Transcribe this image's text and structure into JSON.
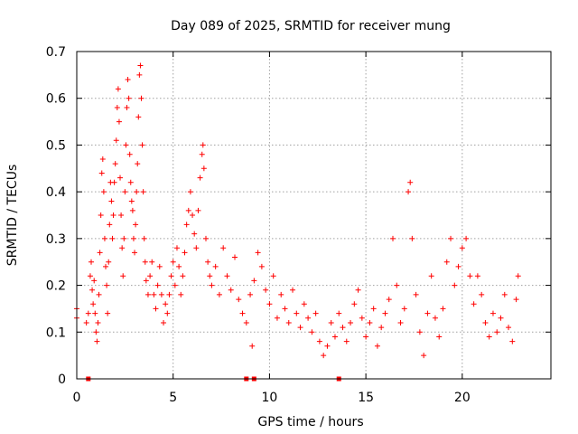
{
  "chart_data": {
    "type": "scatter",
    "title": "Day 089 of 2025, SRMTID for receiver mung",
    "xlabel": "GPS time / hours",
    "ylabel": "SRMTID / TECUs",
    "xlim": [
      0,
      24.6
    ],
    "ylim": [
      0,
      0.7
    ],
    "xticks": [
      0,
      5,
      10,
      15,
      20
    ],
    "yticks": [
      0,
      0.1,
      0.2,
      0.3,
      0.4,
      0.5,
      0.6,
      0.7
    ],
    "xtick_labels": [
      "0",
      "5",
      "10",
      "15",
      "20"
    ],
    "ytick_labels": [
      "0",
      "0.1",
      "0.2",
      "0.3",
      "0.4",
      "0.5",
      "0.6",
      "0.7"
    ],
    "grid": true,
    "marker": "plus",
    "marker_color": "#ff0000",
    "series": [
      {
        "name": "SRMTID",
        "color": "#ff0000",
        "points": [
          [
            0.0,
            0.13
          ],
          [
            0.0,
            0.15
          ],
          [
            0.5,
            0.12
          ],
          [
            0.6,
            0.14
          ],
          [
            0.7,
            0.22
          ],
          [
            0.75,
            0.25
          ],
          [
            0.8,
            0.19
          ],
          [
            0.85,
            0.16
          ],
          [
            0.9,
            0.21
          ],
          [
            0.95,
            0.14
          ],
          [
            1.0,
            0.1
          ],
          [
            1.05,
            0.08
          ],
          [
            1.1,
            0.12
          ],
          [
            1.15,
            0.18
          ],
          [
            1.2,
            0.27
          ],
          [
            1.25,
            0.35
          ],
          [
            1.3,
            0.44
          ],
          [
            1.35,
            0.47
          ],
          [
            1.4,
            0.4
          ],
          [
            1.45,
            0.3
          ],
          [
            1.5,
            0.24
          ],
          [
            1.55,
            0.2
          ],
          [
            1.6,
            0.14
          ],
          [
            1.65,
            0.25
          ],
          [
            1.7,
            0.33
          ],
          [
            1.75,
            0.42
          ],
          [
            1.8,
            0.38
          ],
          [
            1.85,
            0.3
          ],
          [
            1.9,
            0.35
          ],
          [
            1.95,
            0.42
          ],
          [
            2.0,
            0.46
          ],
          [
            2.05,
            0.51
          ],
          [
            2.1,
            0.58
          ],
          [
            2.15,
            0.62
          ],
          [
            2.2,
            0.55
          ],
          [
            2.25,
            0.43
          ],
          [
            2.3,
            0.35
          ],
          [
            2.35,
            0.28
          ],
          [
            2.4,
            0.22
          ],
          [
            2.45,
            0.3
          ],
          [
            2.5,
            0.4
          ],
          [
            2.55,
            0.5
          ],
          [
            2.6,
            0.58
          ],
          [
            2.65,
            0.64
          ],
          [
            2.7,
            0.6
          ],
          [
            2.75,
            0.48
          ],
          [
            2.8,
            0.42
          ],
          [
            2.85,
            0.38
          ],
          [
            2.9,
            0.36
          ],
          [
            2.95,
            0.3
          ],
          [
            3.0,
            0.27
          ],
          [
            3.05,
            0.33
          ],
          [
            3.1,
            0.4
          ],
          [
            3.15,
            0.46
          ],
          [
            3.2,
            0.56
          ],
          [
            3.25,
            0.65
          ],
          [
            3.3,
            0.67
          ],
          [
            3.35,
            0.6
          ],
          [
            3.4,
            0.5
          ],
          [
            3.45,
            0.4
          ],
          [
            3.5,
            0.3
          ],
          [
            3.55,
            0.25
          ],
          [
            3.6,
            0.21
          ],
          [
            3.7,
            0.18
          ],
          [
            3.8,
            0.22
          ],
          [
            3.9,
            0.25
          ],
          [
            4.0,
            0.18
          ],
          [
            4.1,
            0.15
          ],
          [
            4.2,
            0.2
          ],
          [
            4.3,
            0.24
          ],
          [
            4.4,
            0.18
          ],
          [
            4.5,
            0.12
          ],
          [
            4.6,
            0.16
          ],
          [
            4.7,
            0.14
          ],
          [
            4.8,
            0.18
          ],
          [
            4.9,
            0.22
          ],
          [
            5.0,
            0.25
          ],
          [
            5.1,
            0.2
          ],
          [
            5.2,
            0.28
          ],
          [
            5.3,
            0.24
          ],
          [
            5.4,
            0.18
          ],
          [
            5.5,
            0.22
          ],
          [
            5.6,
            0.27
          ],
          [
            5.7,
            0.33
          ],
          [
            5.8,
            0.36
          ],
          [
            5.9,
            0.4
          ],
          [
            6.0,
            0.35
          ],
          [
            6.1,
            0.31
          ],
          [
            6.2,
            0.28
          ],
          [
            6.3,
            0.36
          ],
          [
            6.4,
            0.43
          ],
          [
            6.5,
            0.48
          ],
          [
            6.55,
            0.5
          ],
          [
            6.6,
            0.45
          ],
          [
            6.7,
            0.3
          ],
          [
            6.8,
            0.25
          ],
          [
            6.9,
            0.22
          ],
          [
            7.0,
            0.2
          ],
          [
            7.2,
            0.24
          ],
          [
            7.4,
            0.18
          ],
          [
            7.6,
            0.28
          ],
          [
            7.8,
            0.22
          ],
          [
            8.0,
            0.19
          ],
          [
            8.2,
            0.26
          ],
          [
            8.4,
            0.17
          ],
          [
            8.6,
            0.14
          ],
          [
            8.8,
            0.12
          ],
          [
            9.0,
            0.18
          ],
          [
            9.1,
            0.07
          ],
          [
            9.2,
            0.21
          ],
          [
            9.4,
            0.27
          ],
          [
            9.6,
            0.24
          ],
          [
            9.8,
            0.19
          ],
          [
            10.0,
            0.16
          ],
          [
            10.2,
            0.22
          ],
          [
            10.4,
            0.13
          ],
          [
            10.6,
            0.18
          ],
          [
            10.8,
            0.15
          ],
          [
            11.0,
            0.12
          ],
          [
            11.2,
            0.19
          ],
          [
            11.4,
            0.14
          ],
          [
            11.6,
            0.11
          ],
          [
            11.8,
            0.16
          ],
          [
            12.0,
            0.13
          ],
          [
            12.2,
            0.1
          ],
          [
            12.4,
            0.14
          ],
          [
            12.6,
            0.08
          ],
          [
            12.8,
            0.05
          ],
          [
            13.0,
            0.07
          ],
          [
            13.2,
            0.12
          ],
          [
            13.4,
            0.09
          ],
          [
            13.6,
            0.14
          ],
          [
            13.8,
            0.11
          ],
          [
            14.0,
            0.08
          ],
          [
            14.2,
            0.12
          ],
          [
            14.4,
            0.16
          ],
          [
            14.6,
            0.19
          ],
          [
            14.8,
            0.13
          ],
          [
            15.0,
            0.09
          ],
          [
            15.2,
            0.12
          ],
          [
            15.4,
            0.15
          ],
          [
            15.6,
            0.07
          ],
          [
            15.8,
            0.11
          ],
          [
            16.0,
            0.14
          ],
          [
            16.2,
            0.17
          ],
          [
            16.4,
            0.3
          ],
          [
            16.6,
            0.2
          ],
          [
            16.8,
            0.12
          ],
          [
            17.0,
            0.15
          ],
          [
            17.2,
            0.4
          ],
          [
            17.3,
            0.42
          ],
          [
            17.4,
            0.3
          ],
          [
            17.6,
            0.18
          ],
          [
            17.8,
            0.1
          ],
          [
            18.0,
            0.05
          ],
          [
            18.2,
            0.14
          ],
          [
            18.4,
            0.22
          ],
          [
            18.6,
            0.13
          ],
          [
            18.8,
            0.09
          ],
          [
            19.0,
            0.15
          ],
          [
            19.2,
            0.25
          ],
          [
            19.4,
            0.3
          ],
          [
            19.6,
            0.2
          ],
          [
            19.8,
            0.24
          ],
          [
            20.0,
            0.28
          ],
          [
            20.2,
            0.3
          ],
          [
            20.4,
            0.22
          ],
          [
            20.6,
            0.16
          ],
          [
            20.8,
            0.22
          ],
          [
            21.0,
            0.18
          ],
          [
            21.2,
            0.12
          ],
          [
            21.4,
            0.09
          ],
          [
            21.6,
            0.14
          ],
          [
            21.8,
            0.1
          ],
          [
            22.0,
            0.13
          ],
          [
            22.2,
            0.18
          ],
          [
            22.4,
            0.11
          ],
          [
            22.6,
            0.08
          ],
          [
            22.8,
            0.17
          ],
          [
            22.9,
            0.22
          ]
        ]
      }
    ],
    "zero_markers_x": [
      0.6,
      8.8,
      9.2,
      13.6
    ]
  }
}
